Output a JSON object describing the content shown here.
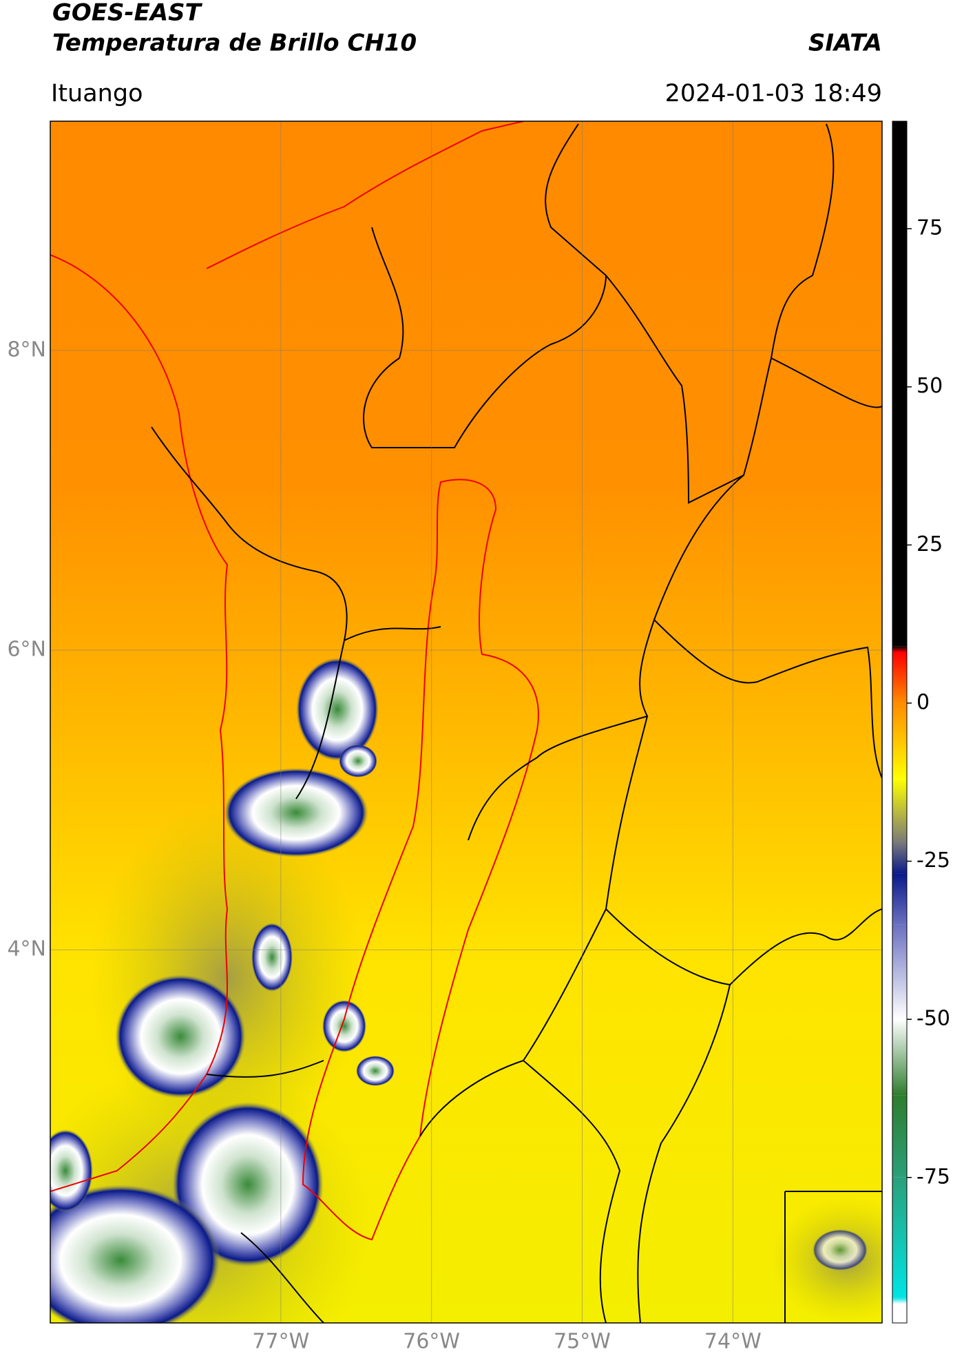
{
  "chart_data": {
    "type": "map",
    "title": "GOES-EAST",
    "subtitle": "Temperatura de Brillo CH10",
    "source": "SIATA",
    "region": "Ituango",
    "datetime": "2024-01-03 18:49",
    "xlim": [
      -78.53,
      -73.01
    ],
    "ylim": [
      1.51,
      9.53
    ],
    "xticks": [
      {
        "value": -77,
        "label": "77°W"
      },
      {
        "value": -76,
        "label": "76°W"
      },
      {
        "value": -75,
        "label": "75°W"
      },
      {
        "value": -74,
        "label": "74°W"
      }
    ],
    "yticks": [
      {
        "value": 8,
        "label": "8°N"
      },
      {
        "value": 6,
        "label": "6°N"
      },
      {
        "value": 4,
        "label": "4°N"
      }
    ],
    "grid": true,
    "colorbar": {
      "lim": [
        -98,
        92
      ],
      "ticks": [
        75,
        50,
        25,
        0,
        -25,
        -50,
        -75
      ],
      "stops": [
        {
          "value": -98,
          "color": "#ffffff"
        },
        {
          "value": -95,
          "color": "#ffffff"
        },
        {
          "value": -94,
          "color": "#00e5e5"
        },
        {
          "value": -75,
          "color": "#2aa07a"
        },
        {
          "value": -62,
          "color": "#2e7d2e"
        },
        {
          "value": -50,
          "color": "#ffffff"
        },
        {
          "value": -35,
          "color": "#6a70c0"
        },
        {
          "value": -27,
          "color": "#0a1a8a"
        },
        {
          "value": -22,
          "color": "#7a7a7a"
        },
        {
          "value": -12,
          "color": "#ffff00"
        },
        {
          "value": 0,
          "color": "#ff8c00"
        },
        {
          "value": 8,
          "color": "#ff0000"
        },
        {
          "value": 9,
          "color": "#000000"
        },
        {
          "value": 92,
          "color": "#000000"
        }
      ]
    }
  }
}
